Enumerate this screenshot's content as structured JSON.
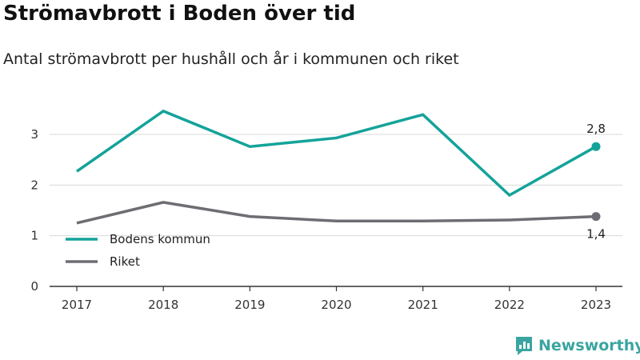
{
  "title": "Strömavbrott i Boden över tid",
  "subtitle": "Antal strömavbrott per hushåll och år i kommunen och riket",
  "brand": {
    "name": "Newsworthy",
    "icon": "newsworthy-logo-icon"
  },
  "colors": {
    "kommun": "#14a39a",
    "riket": "#6d6d73",
    "grid": "#d9d9d9",
    "axis": "#333333",
    "brand": "#3aa5a0"
  },
  "chart_data": {
    "type": "line",
    "x": [
      "2017",
      "2018",
      "2019",
      "2020",
      "2021",
      "2022",
      "2023"
    ],
    "ylim": [
      0,
      3.6
    ],
    "yticks": [
      0,
      1,
      2,
      3
    ],
    "ytick_labels": [
      "0",
      "1",
      "2",
      "3"
    ],
    "grid": true,
    "legend": "bottom-left",
    "series": [
      {
        "name": "Bodens kommun",
        "values": [
          2.27,
          3.46,
          2.76,
          2.93,
          3.39,
          1.8,
          2.76
        ],
        "end_label": "2,8",
        "color": "#14a39a"
      },
      {
        "name": "Riket",
        "values": [
          1.25,
          1.66,
          1.38,
          1.29,
          1.29,
          1.31,
          1.38
        ],
        "end_label": "1,4",
        "color": "#6d6d73"
      }
    ]
  }
}
